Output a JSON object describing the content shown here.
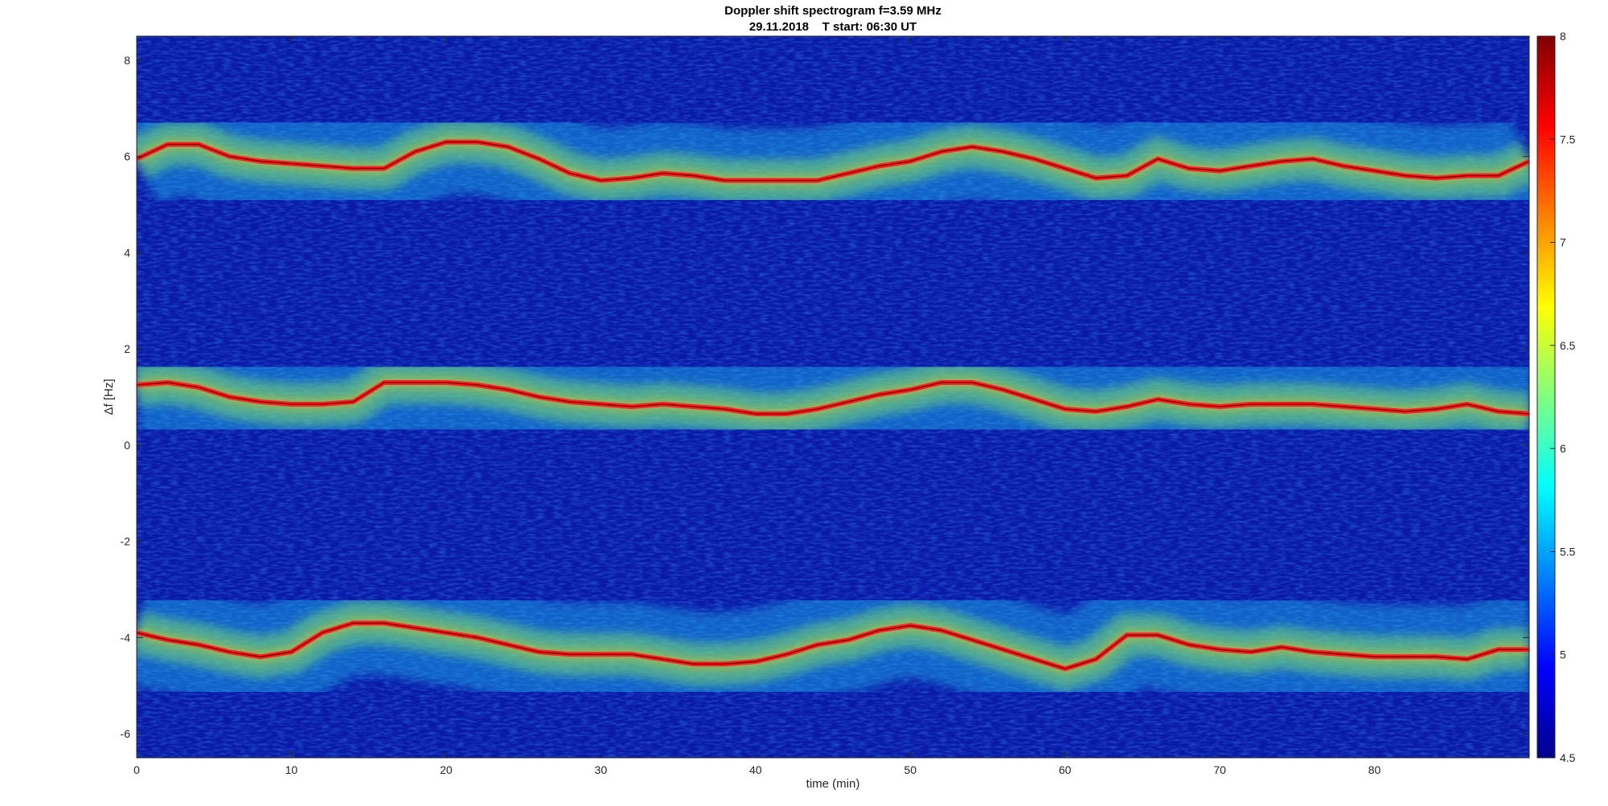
{
  "chart_data": {
    "type": "heatmap",
    "title": "Doppler shift spectrogram f=3.59 MHz",
    "subtitle": "29.11.2018    T start: 06:30 UT",
    "xlabel": "time (min)",
    "ylabel": "Δf [Hz]",
    "xlim": [
      0,
      90
    ],
    "ylim": [
      -6.5,
      8.5
    ],
    "xticks": [
      0,
      10,
      20,
      30,
      40,
      50,
      60,
      70,
      80
    ],
    "yticks": [
      -6,
      -4,
      -2,
      0,
      2,
      4,
      6,
      8
    ],
    "colorbar": {
      "colormap": "jet",
      "range": [
        4.5,
        8
      ],
      "ticks": [
        4.5,
        5,
        5.5,
        6,
        6.5,
        7,
        7.5,
        8
      ]
    },
    "grid": false,
    "series": [
      {
        "values_y": [
          [
            0,
            5.95
          ],
          [
            2,
            6.25
          ],
          [
            4,
            6.25
          ],
          [
            6,
            6.0
          ],
          [
            8,
            5.9
          ],
          [
            10,
            5.85
          ],
          [
            12,
            5.8
          ],
          [
            14,
            5.75
          ],
          [
            16,
            5.75
          ],
          [
            18,
            6.1
          ],
          [
            20,
            6.3
          ],
          [
            22,
            6.3
          ],
          [
            24,
            6.2
          ],
          [
            26,
            5.95
          ],
          [
            28,
            5.65
          ],
          [
            30,
            5.5
          ],
          [
            32,
            5.55
          ],
          [
            34,
            5.65
          ],
          [
            36,
            5.6
          ],
          [
            38,
            5.5
          ],
          [
            40,
            5.5
          ],
          [
            42,
            5.5
          ],
          [
            44,
            5.5
          ],
          [
            46,
            5.65
          ],
          [
            48,
            5.8
          ],
          [
            50,
            5.9
          ],
          [
            52,
            6.1
          ],
          [
            54,
            6.2
          ],
          [
            56,
            6.1
          ],
          [
            58,
            5.95
          ],
          [
            60,
            5.75
          ],
          [
            62,
            5.55
          ],
          [
            64,
            5.6
          ],
          [
            66,
            5.95
          ],
          [
            68,
            5.75
          ],
          [
            70,
            5.7
          ],
          [
            72,
            5.8
          ],
          [
            74,
            5.9
          ],
          [
            76,
            5.95
          ],
          [
            78,
            5.8
          ],
          [
            80,
            5.7
          ],
          [
            82,
            5.6
          ],
          [
            84,
            5.55
          ],
          [
            86,
            5.6
          ],
          [
            88,
            5.6
          ],
          [
            90,
            5.9
          ]
        ]
      },
      {
        "values_y": [
          [
            0,
            1.25
          ],
          [
            2,
            1.3
          ],
          [
            4,
            1.2
          ],
          [
            6,
            1.0
          ],
          [
            8,
            0.9
          ],
          [
            10,
            0.85
          ],
          [
            12,
            0.85
          ],
          [
            14,
            0.9
          ],
          [
            16,
            1.3
          ],
          [
            18,
            1.3
          ],
          [
            20,
            1.3
          ],
          [
            22,
            1.25
          ],
          [
            24,
            1.15
          ],
          [
            26,
            1.0
          ],
          [
            28,
            0.9
          ],
          [
            30,
            0.85
          ],
          [
            32,
            0.8
          ],
          [
            34,
            0.85
          ],
          [
            36,
            0.8
          ],
          [
            38,
            0.75
          ],
          [
            40,
            0.65
          ],
          [
            42,
            0.65
          ],
          [
            44,
            0.75
          ],
          [
            46,
            0.9
          ],
          [
            48,
            1.05
          ],
          [
            50,
            1.15
          ],
          [
            52,
            1.3
          ],
          [
            54,
            1.3
          ],
          [
            56,
            1.15
          ],
          [
            58,
            0.95
          ],
          [
            60,
            0.75
          ],
          [
            62,
            0.7
          ],
          [
            64,
            0.8
          ],
          [
            66,
            0.95
          ],
          [
            68,
            0.85
          ],
          [
            70,
            0.8
          ],
          [
            72,
            0.85
          ],
          [
            74,
            0.85
          ],
          [
            76,
            0.85
          ],
          [
            78,
            0.8
          ],
          [
            80,
            0.75
          ],
          [
            82,
            0.7
          ],
          [
            84,
            0.75
          ],
          [
            86,
            0.85
          ],
          [
            88,
            0.7
          ],
          [
            90,
            0.65
          ]
        ]
      },
      {
        "values_y": [
          [
            0,
            -3.9
          ],
          [
            2,
            -4.05
          ],
          [
            4,
            -4.15
          ],
          [
            6,
            -4.3
          ],
          [
            8,
            -4.4
          ],
          [
            10,
            -4.3
          ],
          [
            12,
            -3.9
          ],
          [
            14,
            -3.7
          ],
          [
            16,
            -3.7
          ],
          [
            18,
            -3.8
          ],
          [
            20,
            -3.9
          ],
          [
            22,
            -4.0
          ],
          [
            24,
            -4.15
          ],
          [
            26,
            -4.3
          ],
          [
            28,
            -4.35
          ],
          [
            30,
            -4.35
          ],
          [
            32,
            -4.35
          ],
          [
            34,
            -4.45
          ],
          [
            36,
            -4.55
          ],
          [
            38,
            -4.55
          ],
          [
            40,
            -4.5
          ],
          [
            42,
            -4.35
          ],
          [
            44,
            -4.15
          ],
          [
            46,
            -4.05
          ],
          [
            48,
            -3.85
          ],
          [
            50,
            -3.75
          ],
          [
            52,
            -3.85
          ],
          [
            54,
            -4.05
          ],
          [
            56,
            -4.25
          ],
          [
            58,
            -4.45
          ],
          [
            60,
            -4.65
          ],
          [
            62,
            -4.45
          ],
          [
            64,
            -3.95
          ],
          [
            66,
            -3.95
          ],
          [
            68,
            -4.15
          ],
          [
            70,
            -4.25
          ],
          [
            72,
            -4.3
          ],
          [
            74,
            -4.2
          ],
          [
            76,
            -4.3
          ],
          [
            78,
            -4.35
          ],
          [
            80,
            -4.4
          ],
          [
            82,
            -4.4
          ],
          [
            84,
            -4.4
          ],
          [
            86,
            -4.45
          ],
          [
            88,
            -4.25
          ],
          [
            90,
            -4.25
          ]
        ]
      }
    ]
  }
}
